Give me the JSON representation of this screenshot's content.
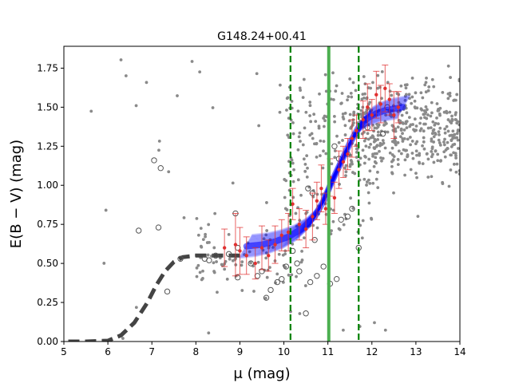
{
  "chart_data": {
    "type": "scatter",
    "title": "G148.24+00.41",
    "xlabel": "μ (mag)",
    "ylabel": "E(B − V) (mag)",
    "xlim": [
      5,
      14
    ],
    "ylim": [
      0,
      1.89
    ],
    "x_ticks": [
      5,
      6,
      7,
      8,
      9,
      10,
      11,
      12,
      13,
      14
    ],
    "y_ticks": [
      0.0,
      0.25,
      0.5,
      0.75,
      1.0,
      1.25,
      1.5,
      1.75
    ],
    "x_tick_labels": [
      "5",
      "6",
      "7",
      "8",
      "9",
      "10",
      "11",
      "12",
      "13",
      "14"
    ],
    "y_tick_labels": [
      "0.00",
      "0.25",
      "0.50",
      "0.75",
      "1.00",
      "1.25",
      "1.50",
      "1.75"
    ],
    "vertical_lines": [
      {
        "name": "cloud-distance",
        "x": 11.02,
        "style": "solid",
        "color": "#4caf50"
      },
      {
        "name": "lower-bound",
        "x": 10.15,
        "style": "dashed",
        "color": "#008000"
      },
      {
        "name": "upper-bound",
        "x": 11.7,
        "style": "dashed",
        "color": "#008000"
      }
    ],
    "model_curve": {
      "name": "extinction-model",
      "color": "#444444",
      "style": "dashed",
      "x": [
        5.1,
        5.5,
        6.0,
        6.3,
        6.6,
        6.9,
        7.1,
        7.3,
        7.5,
        7.7,
        8.0,
        8.5,
        9.0
      ],
      "y": [
        0.0,
        0.0,
        0.005,
        0.04,
        0.12,
        0.25,
        0.36,
        0.45,
        0.51,
        0.54,
        0.55,
        0.55,
        0.55
      ]
    },
    "blue_band": {
      "name": "fit-band",
      "color": "#0000ff",
      "x": [
        9.15,
        9.5,
        9.8,
        10.1,
        10.4,
        10.7,
        10.9,
        11.1,
        11.3,
        11.5,
        11.7,
        11.9,
        12.1,
        12.3,
        12.5,
        12.7
      ],
      "y": [
        0.61,
        0.62,
        0.64,
        0.67,
        0.72,
        0.8,
        0.9,
        1.03,
        1.15,
        1.27,
        1.37,
        1.43,
        1.46,
        1.48,
        1.49,
        1.5
      ]
    },
    "red_points": {
      "name": "binned-measurements",
      "color": "#e03030",
      "points": [
        [
          8.65,
          0.6,
          0.12
        ],
        [
          8.9,
          0.62,
          0.2
        ],
        [
          9.0,
          0.58,
          0.15
        ],
        [
          9.15,
          0.55,
          0.12
        ],
        [
          9.35,
          0.5,
          0.1
        ],
        [
          9.5,
          0.6,
          0.14
        ],
        [
          9.65,
          0.55,
          0.1
        ],
        [
          9.8,
          0.62,
          0.12
        ],
        [
          9.95,
          0.68,
          0.1
        ],
        [
          10.1,
          0.7,
          0.12
        ],
        [
          10.2,
          0.88,
          0.1
        ],
        [
          10.35,
          0.75,
          0.1
        ],
        [
          10.5,
          0.72,
          0.12
        ],
        [
          10.65,
          0.8,
          0.15
        ],
        [
          10.75,
          0.9,
          0.12
        ],
        [
          10.85,
          0.98,
          0.15
        ],
        [
          10.95,
          0.85,
          0.1
        ],
        [
          11.05,
          1.05,
          0.12
        ],
        [
          11.15,
          0.92,
          0.1
        ],
        [
          11.25,
          1.1,
          0.12
        ],
        [
          11.35,
          1.15,
          0.1
        ],
        [
          11.45,
          1.2,
          0.1
        ],
        [
          11.55,
          1.3,
          0.12
        ],
        [
          11.65,
          1.35,
          0.1
        ],
        [
          11.8,
          1.42,
          0.12
        ],
        [
          11.9,
          1.5,
          0.15
        ],
        [
          12.0,
          1.45,
          0.1
        ],
        [
          12.1,
          1.58,
          0.15
        ],
        [
          12.2,
          1.52,
          0.12
        ],
        [
          12.3,
          1.62,
          0.15
        ],
        [
          12.4,
          1.55,
          0.1
        ],
        [
          12.5,
          1.45,
          0.15
        ],
        [
          12.6,
          1.5,
          0.1
        ]
      ]
    },
    "open_circles": {
      "name": "excluded-stars",
      "color": "#555555",
      "points": [
        [
          6.7,
          0.71
        ],
        [
          7.05,
          1.16
        ],
        [
          7.2,
          1.11
        ],
        [
          7.15,
          0.73
        ],
        [
          7.35,
          0.32
        ],
        [
          7.65,
          0.53
        ],
        [
          8.2,
          0.53
        ],
        [
          8.3,
          0.52
        ],
        [
          8.45,
          0.55
        ],
        [
          8.75,
          0.56
        ],
        [
          8.9,
          0.82
        ],
        [
          8.95,
          0.6
        ],
        [
          8.95,
          0.41
        ],
        [
          9.25,
          0.5
        ],
        [
          9.4,
          0.42
        ],
        [
          9.5,
          0.45
        ],
        [
          9.6,
          0.28
        ],
        [
          9.7,
          0.33
        ],
        [
          9.85,
          0.38
        ],
        [
          9.95,
          0.4
        ],
        [
          10.05,
          0.48
        ],
        [
          10.2,
          0.58
        ],
        [
          10.3,
          0.5
        ],
        [
          10.35,
          0.45
        ],
        [
          10.5,
          0.18
        ],
        [
          10.6,
          0.38
        ],
        [
          10.7,
          0.65
        ],
        [
          10.75,
          0.42
        ],
        [
          10.9,
          0.48
        ],
        [
          11.05,
          0.37
        ],
        [
          11.2,
          0.4
        ],
        [
          11.15,
          1.25
        ],
        [
          11.25,
          1.17
        ],
        [
          10.55,
          0.98
        ],
        [
          10.65,
          0.95
        ],
        [
          11.3,
          0.78
        ],
        [
          11.45,
          0.8
        ],
        [
          11.55,
          0.85
        ],
        [
          11.7,
          0.6
        ],
        [
          11.45,
          1.2
        ],
        [
          12.25,
          1.33
        ],
        [
          12.35,
          1.5
        ],
        [
          11.9,
          1.37
        ]
      ]
    },
    "gray_count": 720
  }
}
